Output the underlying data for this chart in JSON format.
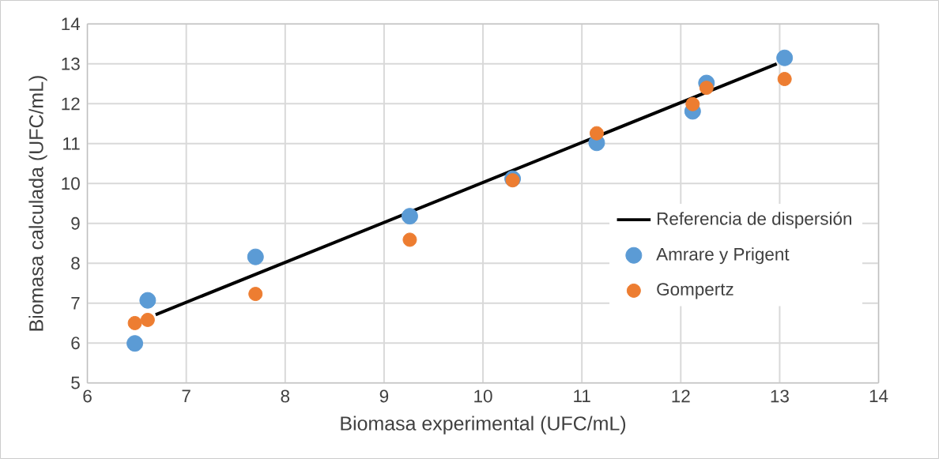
{
  "chart_data": {
    "type": "scatter",
    "xlabel": "Biomasa experimental (UFC/mL)",
    "ylabel": "Biomasa calculada (UFC/mL)",
    "xlim": [
      6,
      14
    ],
    "ylim": [
      5,
      14
    ],
    "xticks": [
      6,
      7,
      8,
      9,
      10,
      11,
      12,
      13,
      14
    ],
    "yticks": [
      5,
      6,
      7,
      8,
      9,
      10,
      11,
      12,
      13,
      14
    ],
    "grid": true,
    "legend": "right",
    "marker": "circle",
    "series": [
      {
        "name": "Referencia de dispersión",
        "type": "line",
        "marker": "none",
        "color": "#000000",
        "x": [
          6.69,
          12.97
        ],
        "values": [
          6.71,
          13.0
        ]
      },
      {
        "name": "Amrare y Prigent",
        "color": "#5b9bd5",
        "x": [
          6.48,
          6.61,
          7.7,
          9.26,
          10.3,
          11.15,
          12.12,
          12.26,
          13.05
        ],
        "values": [
          5.99,
          7.07,
          8.16,
          9.18,
          10.12,
          11.02,
          11.81,
          12.52,
          13.15
        ]
      },
      {
        "name": "Gompertz",
        "color": "#ed7d31",
        "x": [
          6.48,
          6.61,
          7.7,
          9.26,
          10.3,
          11.15,
          12.12,
          12.26,
          13.05
        ],
        "values": [
          6.5,
          6.58,
          7.23,
          8.59,
          10.08,
          11.26,
          11.99,
          12.4,
          12.62
        ]
      }
    ]
  }
}
